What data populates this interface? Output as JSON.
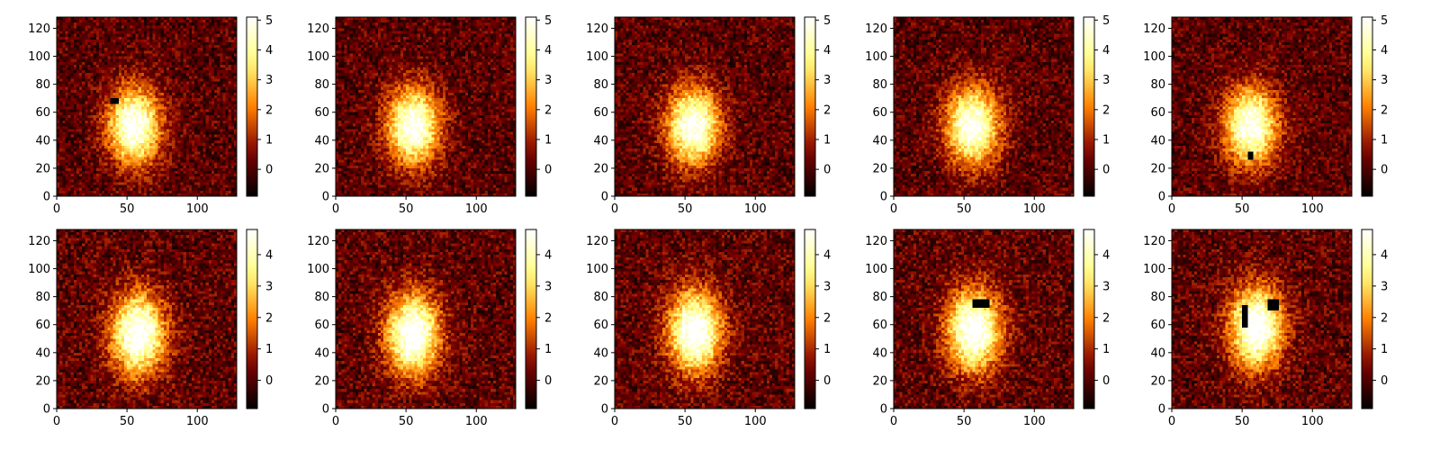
{
  "chart_data": {
    "type": "heatmap",
    "layout": {
      "rows": 2,
      "cols": 5
    },
    "colormap": "afmhot",
    "grid": false,
    "image_size": [
      128,
      128
    ],
    "xlim": [
      0,
      128
    ],
    "ylim": [
      0,
      128
    ],
    "x_ticks": [
      "0",
      "50",
      "100"
    ],
    "y_ticks": [
      "0",
      "20",
      "40",
      "60",
      "80",
      "100",
      "120"
    ],
    "panels": [
      {
        "blob": {
          "cx": 55,
          "cy": 50,
          "sx": 13,
          "sy": 19
        },
        "vmin": -0.9,
        "vmax": 5.1,
        "cbar_ticks": [
          "0",
          "1",
          "2",
          "3",
          "4",
          "5"
        ],
        "masks": [
          {
            "x0": 38,
            "x1": 43,
            "y0": 66,
            "y1": 70
          }
        ]
      },
      {
        "blob": {
          "cx": 55,
          "cy": 50,
          "sx": 13,
          "sy": 19
        },
        "vmin": -0.9,
        "vmax": 5.1,
        "cbar_ticks": [
          "0",
          "1",
          "2",
          "3",
          "4",
          "5"
        ],
        "masks": []
      },
      {
        "blob": {
          "cx": 56,
          "cy": 50,
          "sx": 13,
          "sy": 19
        },
        "vmin": -0.9,
        "vmax": 5.1,
        "cbar_ticks": [
          "0",
          "1",
          "2",
          "3",
          "4",
          "5"
        ],
        "masks": []
      },
      {
        "blob": {
          "cx": 56,
          "cy": 50,
          "sx": 13,
          "sy": 19
        },
        "vmin": -0.9,
        "vmax": 5.1,
        "cbar_ticks": [
          "0",
          "1",
          "2",
          "3",
          "4",
          "5"
        ],
        "masks": []
      },
      {
        "blob": {
          "cx": 56,
          "cy": 50,
          "sx": 13,
          "sy": 19
        },
        "vmin": -0.9,
        "vmax": 5.1,
        "cbar_ticks": [
          "0",
          "1",
          "2",
          "3",
          "4",
          "5"
        ],
        "masks": [
          {
            "x0": 55,
            "x1": 58,
            "y0": 26,
            "y1": 31
          }
        ]
      },
      {
        "blob": {
          "cx": 58,
          "cy": 53,
          "sx": 13,
          "sy": 20
        },
        "vmin": -0.9,
        "vmax": 4.8,
        "cbar_ticks": [
          "0",
          "1",
          "2",
          "3",
          "4"
        ],
        "masks": []
      },
      {
        "blob": {
          "cx": 55,
          "cy": 53,
          "sx": 13,
          "sy": 20
        },
        "vmin": -0.9,
        "vmax": 4.8,
        "cbar_ticks": [
          "0",
          "1",
          "2",
          "3",
          "4"
        ],
        "masks": []
      },
      {
        "blob": {
          "cx": 57,
          "cy": 55,
          "sx": 13,
          "sy": 20
        },
        "vmin": -0.9,
        "vmax": 4.8,
        "cbar_ticks": [
          "0",
          "1",
          "2",
          "3",
          "4"
        ],
        "masks": []
      },
      {
        "blob": {
          "cx": 57,
          "cy": 56,
          "sx": 13,
          "sy": 20
        },
        "vmin": -0.9,
        "vmax": 4.8,
        "cbar_ticks": [
          "0",
          "1",
          "2",
          "3",
          "4"
        ],
        "masks": [
          {
            "x0": 56,
            "x1": 68,
            "y0": 72,
            "y1": 78
          }
        ]
      },
      {
        "blob": {
          "cx": 60,
          "cy": 58,
          "sx": 13,
          "sy": 20
        },
        "vmin": -0.9,
        "vmax": 4.8,
        "cbar_ticks": [
          "0",
          "1",
          "2",
          "3",
          "4"
        ],
        "masks": [
          {
            "x0": 51,
            "x1": 53,
            "y0": 58,
            "y1": 73
          },
          {
            "x0": 69,
            "x1": 75,
            "y0": 71,
            "y1": 78
          }
        ]
      }
    ]
  }
}
